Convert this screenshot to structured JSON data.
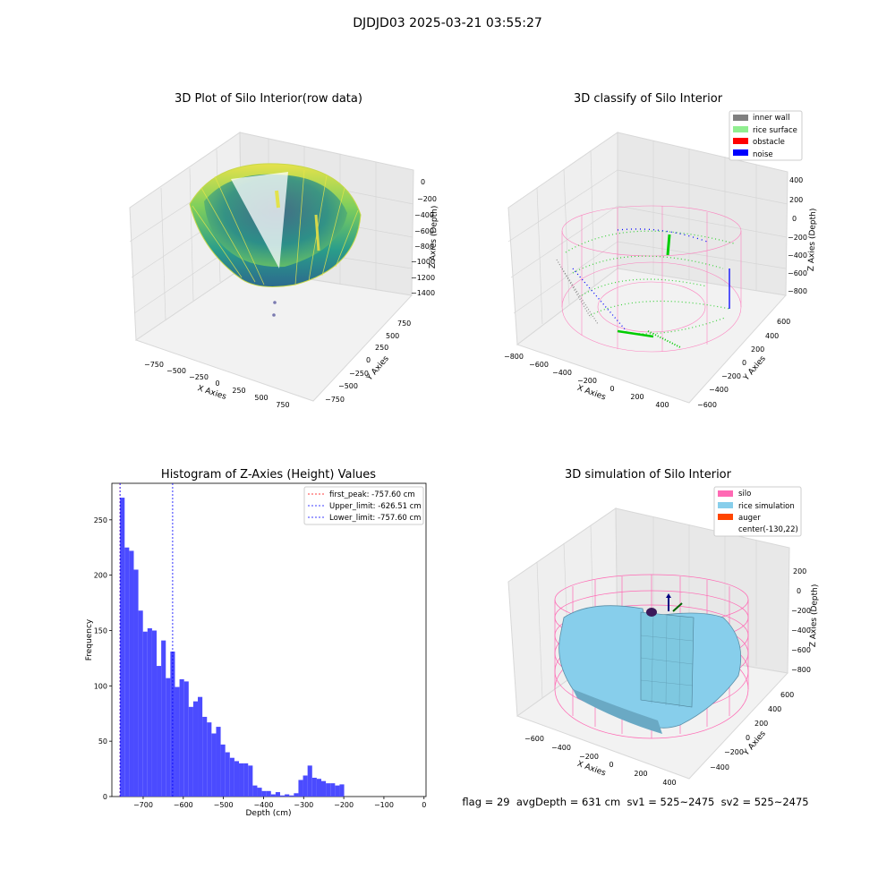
{
  "figure": {
    "title": "DJDJD03 2025-03-21 03:55:27",
    "footer": "flag = 29  avgDepth = 631 cm  sv1 = 525~2475  sv2 = 525~2475"
  },
  "colors": {
    "inner_wall": "#808080",
    "rice_surface": "#90ee90",
    "obstacle": "#ff0000",
    "noise": "#0000ff",
    "silo": "#ff69b4",
    "rice_simulation": "#87ceeb",
    "auger": "#ff4500",
    "histogram": "#4b4bff"
  },
  "panels": {
    "raw": {
      "title": "3D Plot of Silo Interior(row data)",
      "xlabel": "X Axies",
      "ylabel": "Y Axies",
      "zlabel": "Z Axies (Depth)",
      "xticks": [
        "−750",
        "−500",
        "−250",
        "0",
        "250",
        "500",
        "750"
      ],
      "yticks": [
        "750",
        "500",
        "250",
        "0",
        "−250",
        "−500",
        "−750"
      ],
      "zticks": [
        "0",
        "−200",
        "−400",
        "−600",
        "−800",
        "−1000",
        "−1200",
        "−1400"
      ]
    },
    "classify": {
      "title": "3D classify of Silo Interior",
      "xlabel": "X Axies",
      "ylabel": "Y Axies",
      "zlabel": "Z Axies (Depth)",
      "xticks": [
        "−800",
        "−600",
        "−400",
        "−200",
        "0",
        "200",
        "400"
      ],
      "yticks": [
        "600",
        "400",
        "200",
        "0",
        "−200",
        "−400",
        "−600"
      ],
      "zticks": [
        "400",
        "200",
        "0",
        "−200",
        "−400",
        "−600",
        "−800"
      ],
      "legend": [
        "inner wall",
        "rice surface",
        "obstacle",
        "noise"
      ]
    },
    "histogram": {
      "title": "Histogram of Z-Axies (Height) Values",
      "xlabel": "Depth (cm)",
      "ylabel": "Frequency",
      "xticks": [
        "−700",
        "−600",
        "−500",
        "−400",
        "−300",
        "−200",
        "−100",
        "0"
      ],
      "yticks": [
        "0",
        "50",
        "100",
        "150",
        "200",
        "250"
      ],
      "legend": [
        "first_peak: -757.60 cm",
        "Upper_limit: -626.51 cm",
        "Lower_limit: -757.60 cm"
      ]
    },
    "simulation": {
      "title": "3D simulation of Silo Interior",
      "xlabel": "X Axies",
      "ylabel": "Y Axies",
      "zlabel": "Z Axies (Depth)",
      "xticks": [
        "−600",
        "−400",
        "−200",
        "0",
        "200",
        "400"
      ],
      "yticks": [
        "600",
        "400",
        "200",
        "0",
        "−200",
        "−400"
      ],
      "zticks": [
        "200",
        "0",
        "−200",
        "−400",
        "−600",
        "−800"
      ],
      "legend": [
        "silo",
        "rice simulation",
        "auger",
        "center(-130,22)"
      ]
    }
  },
  "chart_data": {
    "type": "bar",
    "title": "Histogram of Z-Axies (Height) Values",
    "xlabel": "Depth (cm)",
    "ylabel": "Frequency",
    "xlim": [
      -778,
      5
    ],
    "ylim": [
      0,
      283
    ],
    "bin_start": -757.6,
    "bin_width": 11.4,
    "values": [
      270,
      225,
      222,
      205,
      168,
      149,
      152,
      150,
      118,
      141,
      107,
      131,
      99,
      106,
      104,
      81,
      86,
      90,
      72,
      67,
      57,
      63,
      47,
      40,
      35,
      32,
      30,
      30,
      28,
      10,
      8,
      5,
      5,
      2,
      4,
      1,
      2,
      1,
      3,
      15,
      19,
      28,
      17,
      16,
      14,
      12,
      12,
      10,
      11
    ],
    "vlines": [
      {
        "name": "first_peak",
        "x": -757.6,
        "color": "#ff0000"
      },
      {
        "name": "Upper_limit",
        "x": -626.51,
        "color": "#0000ff"
      },
      {
        "name": "Lower_limit",
        "x": -757.6,
        "color": "#0000ff"
      }
    ],
    "legend_position": "top-right"
  }
}
